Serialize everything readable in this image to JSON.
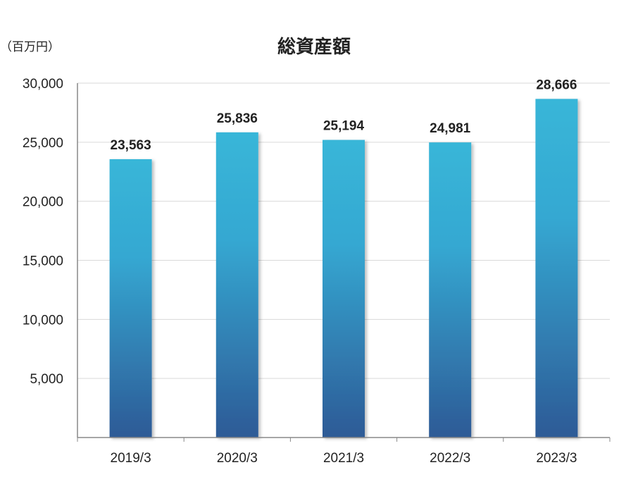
{
  "chart_data": {
    "type": "bar",
    "title": "総資産額",
    "unit_label": "（百万円）",
    "xlabel": "",
    "ylabel": "",
    "categories": [
      "2019/3",
      "2020/3",
      "2021/3",
      "2022/3",
      "2023/3"
    ],
    "values": [
      23563,
      25836,
      25194,
      24981,
      28666
    ],
    "value_labels": [
      "23,563",
      "25,836",
      "25,194",
      "24,981",
      "28,666"
    ],
    "ylim": [
      0,
      30000
    ],
    "yticks": [
      5000,
      10000,
      15000,
      20000,
      25000,
      30000
    ],
    "ytick_labels": [
      "5,000",
      "10,000",
      "15,000",
      "20,000",
      "25,000",
      "30,000"
    ],
    "grid": true,
    "legend": "none",
    "colors": {
      "bar_top": "#38b6d8",
      "bar_bottom": "#2d5a96",
      "grid": "#d9d9d9",
      "axis": "#888888"
    }
  }
}
